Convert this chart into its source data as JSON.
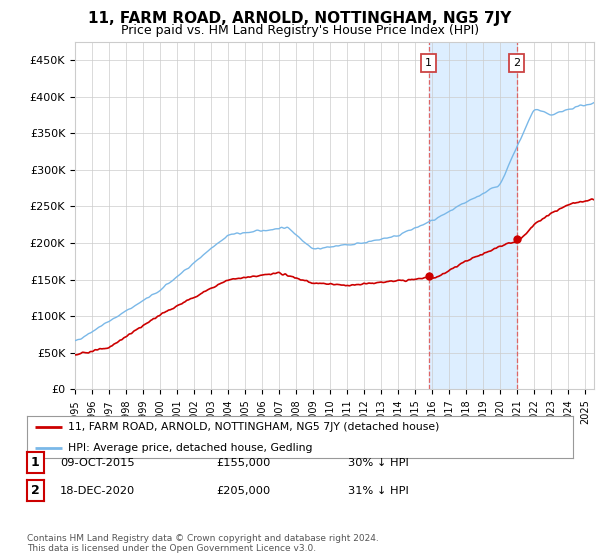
{
  "title": "11, FARM ROAD, ARNOLD, NOTTINGHAM, NG5 7JY",
  "subtitle": "Price paid vs. HM Land Registry's House Price Index (HPI)",
  "title_fontsize": 11,
  "subtitle_fontsize": 9,
  "ylabel_ticks": [
    "£0",
    "£50K",
    "£100K",
    "£150K",
    "£200K",
    "£250K",
    "£300K",
    "£350K",
    "£400K",
    "£450K"
  ],
  "ytick_vals": [
    0,
    50000,
    100000,
    150000,
    200000,
    250000,
    300000,
    350000,
    400000,
    450000
  ],
  "ylim": [
    0,
    475000
  ],
  "xlim_start": 1995.0,
  "xlim_end": 2025.5,
  "hpi_color": "#7ab8e8",
  "price_color": "#cc0000",
  "sale1_date": 2015.78,
  "sale1_price": 155000,
  "sale2_date": 2020.96,
  "sale2_price": 205000,
  "shade_start": 2015.78,
  "shade_end": 2020.96,
  "legend_line1": "11, FARM ROAD, ARNOLD, NOTTINGHAM, NG5 7JY (detached house)",
  "legend_line2": "HPI: Average price, detached house, Gedling",
  "table_rows": [
    {
      "num": "1",
      "date": "09-OCT-2015",
      "price": "£155,000",
      "change": "30% ↓ HPI"
    },
    {
      "num": "2",
      "date": "18-DEC-2020",
      "price": "£205,000",
      "change": "31% ↓ HPI"
    }
  ],
  "footnote": "Contains HM Land Registry data © Crown copyright and database right 2024.\nThis data is licensed under the Open Government Licence v3.0.",
  "grid_color": "#cccccc",
  "background_color": "#ffffff",
  "shade_color": "#ddeeff"
}
